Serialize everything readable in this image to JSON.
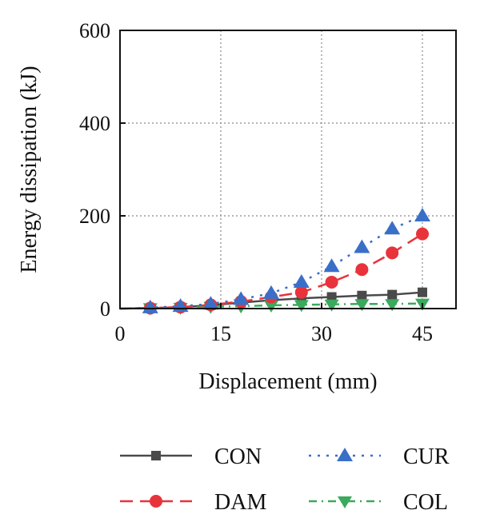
{
  "chart_data": {
    "type": "line",
    "title": "",
    "xlabel": "Displacement (mm)",
    "ylabel": "Energy dissipation (kJ)",
    "xlim": [
      0,
      50
    ],
    "ylim": [
      0,
      600
    ],
    "xticks": [
      0,
      15,
      30,
      45
    ],
    "yticks": [
      0,
      200,
      400,
      600
    ],
    "grid": true,
    "legend_position": "bottom",
    "x": [
      0,
      4.5,
      9,
      13.5,
      18,
      22.5,
      27,
      31.5,
      36,
      40.5,
      45
    ],
    "series": [
      {
        "name": "CON",
        "color": "#4a4a4a",
        "marker": "square",
        "line": "solid",
        "values": [
          0,
          1,
          3,
          7,
          13,
          18,
          22,
          25,
          28,
          30,
          35
        ]
      },
      {
        "name": "CUR",
        "color": "#3a6fc8",
        "marker": "triangle-up",
        "line": "dotted",
        "values": [
          0,
          2,
          5,
          10,
          20,
          33,
          57,
          91,
          132,
          172,
          200
        ]
      },
      {
        "name": "DAM",
        "color": "#e8333b",
        "marker": "circle",
        "line": "dashed",
        "values": [
          0,
          1,
          3,
          8,
          15,
          25,
          35,
          57,
          84,
          120,
          161
        ]
      },
      {
        "name": "COL",
        "color": "#3aaa5c",
        "marker": "triangle-down",
        "line": "dashdot",
        "values": [
          0,
          1,
          2,
          4,
          5,
          7,
          8,
          9,
          10,
          10,
          11
        ]
      }
    ]
  }
}
